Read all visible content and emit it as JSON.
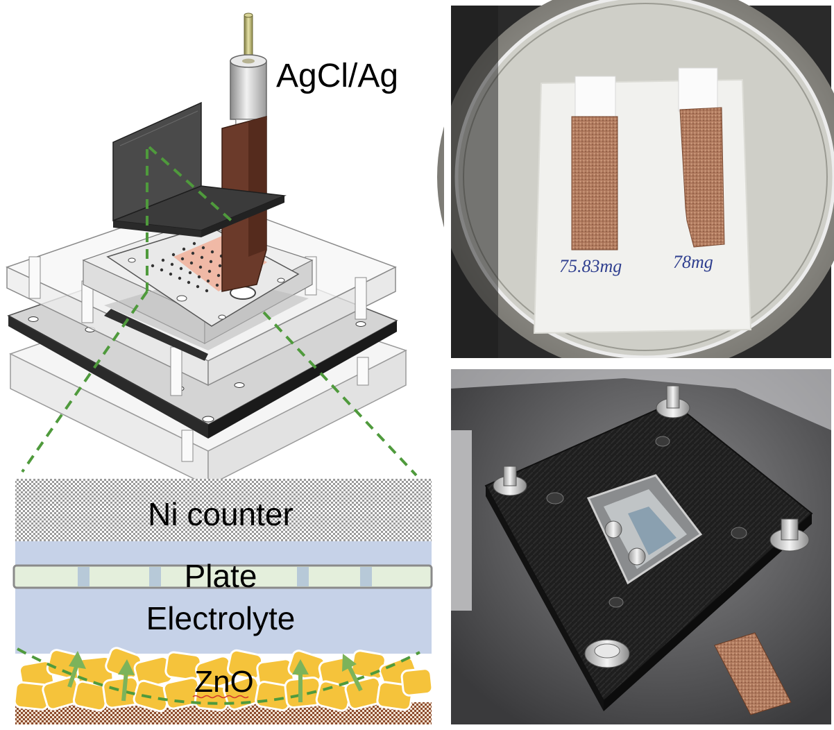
{
  "labels": {
    "reference": "AgCl/Ag",
    "counter": "Ni counter",
    "plate": "Plate",
    "electrolyte": "Electrolyte",
    "anode": "ZnO"
  },
  "photo_top": {
    "mass_left": "75.83mg",
    "mass_right": "78mg"
  },
  "colors": {
    "dashed_line": "#4f9a3c",
    "electrolyte": "#c6d2e8",
    "plate": "#e4efdc",
    "zno_particle": "#f5c33b",
    "copper_foam": "#b07a5e",
    "copper_base": "#8b4a2b",
    "cell_body": "#1c1c1c"
  }
}
